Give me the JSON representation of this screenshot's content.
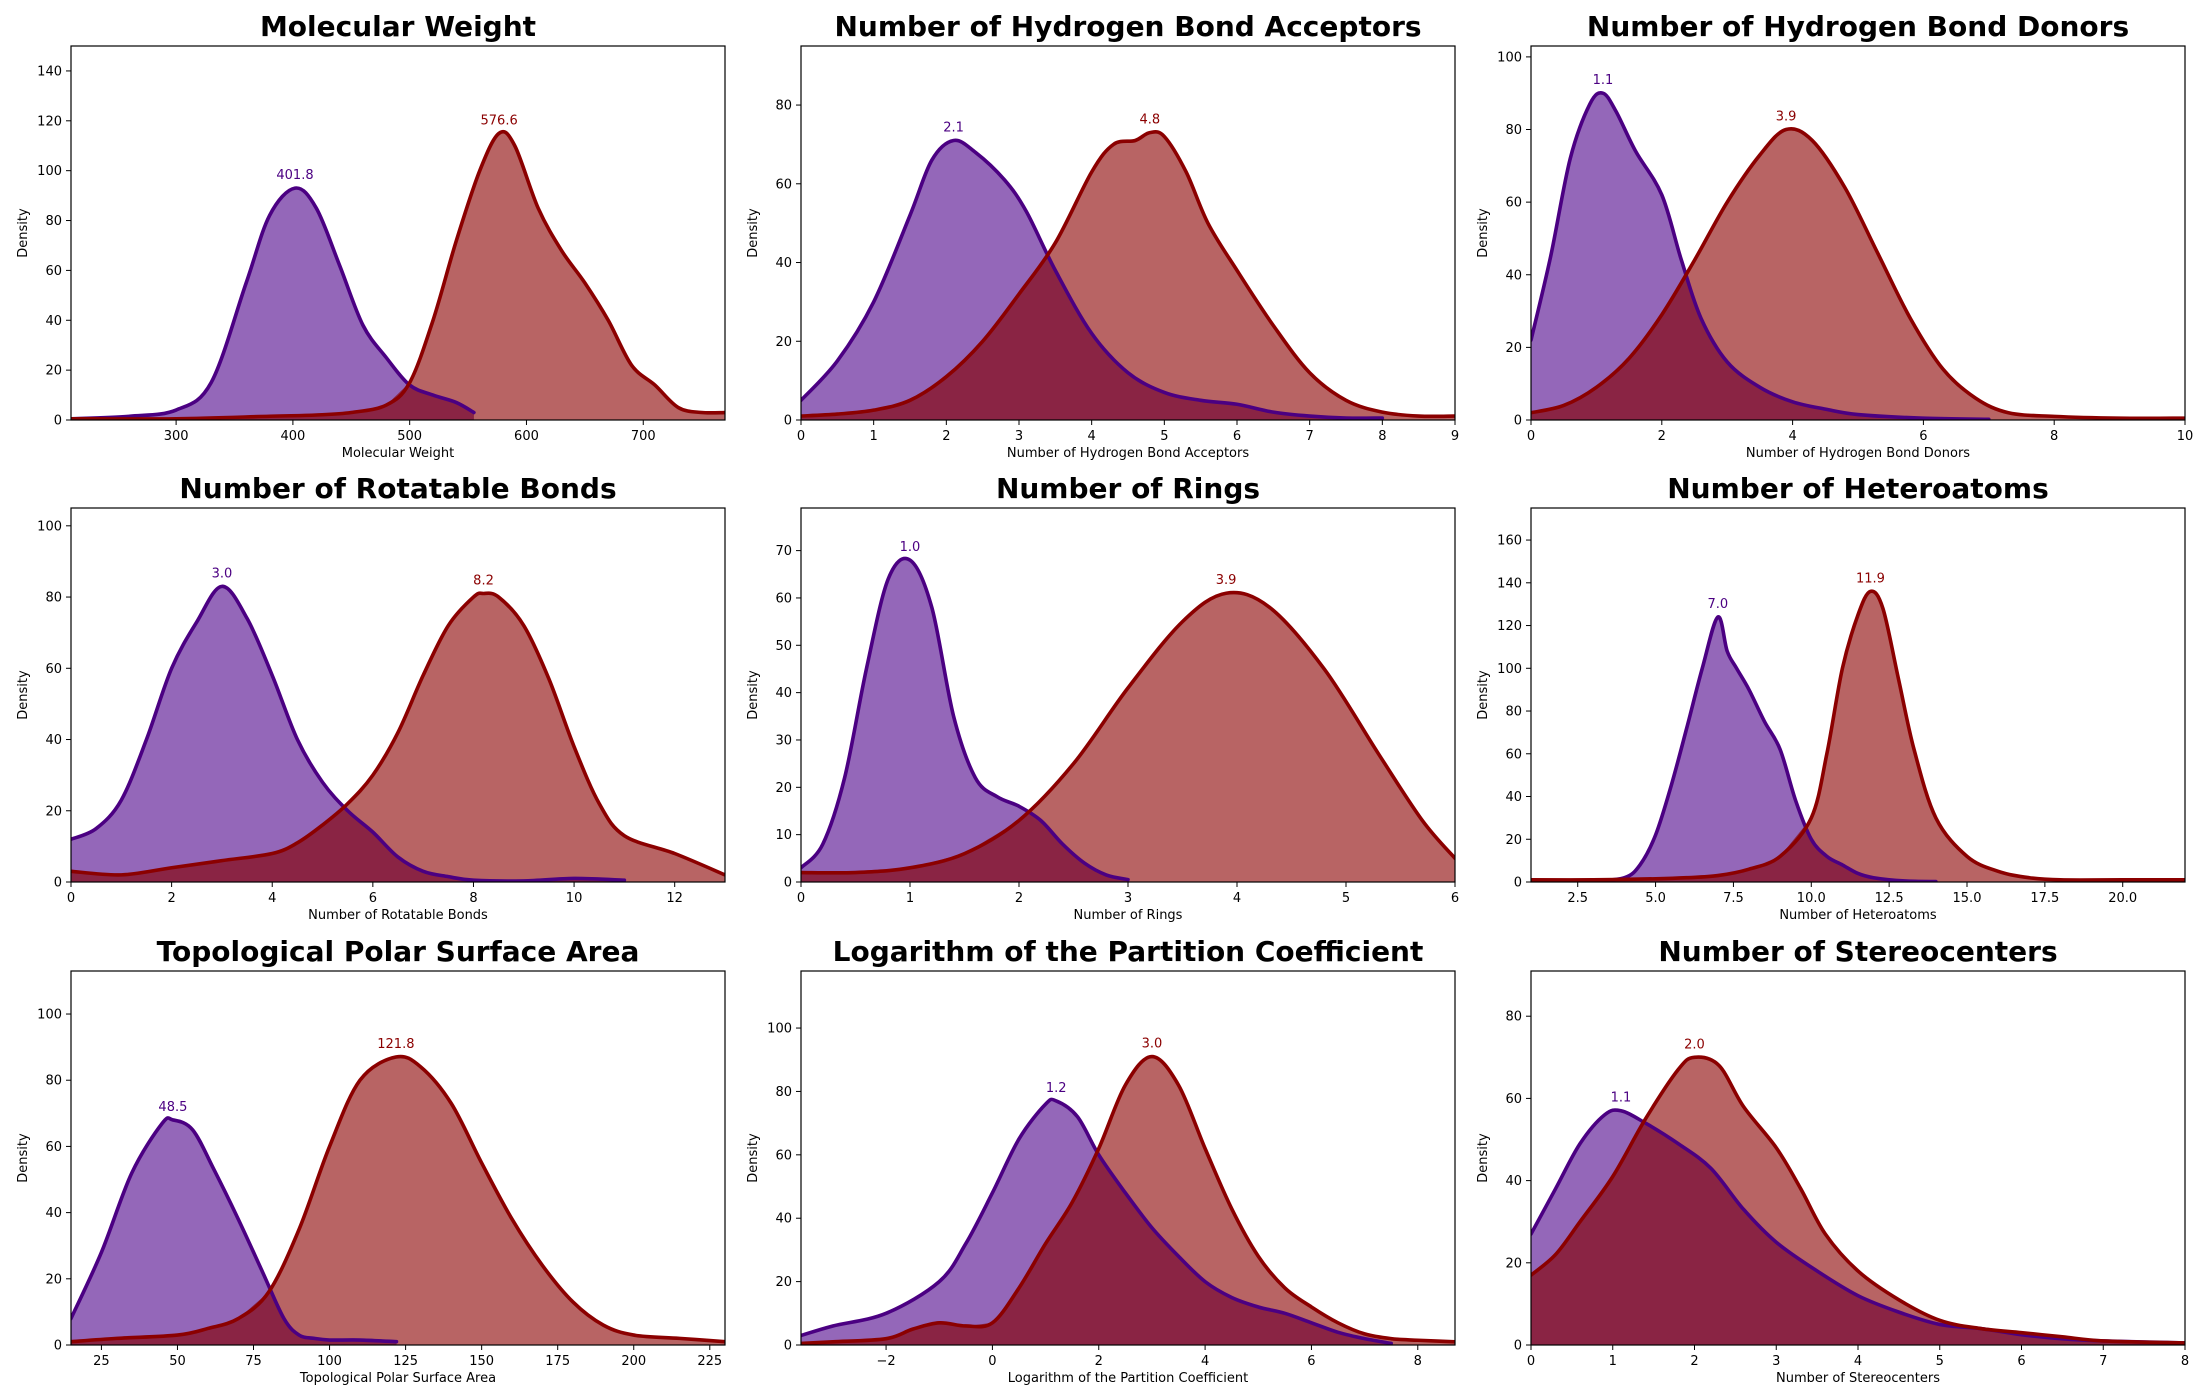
{
  "colors": {
    "series_a": "#4b0082",
    "series_a_fill": "#9467b9",
    "series_b": "#8b0000",
    "series_b_fill": "#b86464",
    "overlap_fill": "#8a2444"
  },
  "chart_data": [
    {
      "type": "area",
      "title": "Molecular Weight",
      "xlabel": "Molecular Weight",
      "ylabel": "Density",
      "xlim": [
        210,
        770
      ],
      "ylim": [
        0,
        150
      ],
      "xticks": [
        300,
        400,
        500,
        600,
        700
      ],
      "xtick_labels": [
        "300",
        "400",
        "500",
        "600",
        "700"
      ],
      "yticks": [
        0,
        20,
        40,
        60,
        80,
        100,
        120,
        140
      ],
      "grid": false,
      "series": [
        {
          "peak_x": 401.8,
          "peak_label": "401.8",
          "x": [
            210,
            260,
            300,
            330,
            360,
            380,
            401.8,
            420,
            440,
            460,
            480,
            500,
            520,
            540,
            555
          ],
          "y": [
            0.5,
            1.5,
            4,
            15,
            55,
            82,
            93,
            85,
            62,
            38,
            25,
            14,
            10,
            7,
            3
          ]
        },
        {
          "peak_x": 576.6,
          "peak_label": "576.6",
          "x": [
            210,
            300,
            380,
            420,
            450,
            480,
            500,
            520,
            540,
            560,
            576.6,
            590,
            610,
            630,
            650,
            670,
            690,
            710,
            730,
            750,
            770
          ],
          "y": [
            0.5,
            0.5,
            1.5,
            2,
            3,
            6,
            15,
            40,
            72,
            100,
            115,
            110,
            85,
            68,
            55,
            40,
            22,
            14,
            5,
            3,
            3
          ]
        }
      ]
    },
    {
      "type": "area",
      "title": "Number of Hydrogen Bond Acceptors",
      "xlabel": "Number of Hydrogen Bond Acceptors",
      "ylabel": "Density",
      "xlim": [
        0,
        9
      ],
      "ylim": [
        0,
        95
      ],
      "xticks": [
        0,
        1,
        2,
        3,
        4,
        5,
        6,
        7,
        8,
        9
      ],
      "xtick_labels": [
        "0",
        "1",
        "2",
        "3",
        "4",
        "5",
        "6",
        "7",
        "8",
        "9"
      ],
      "yticks": [
        0,
        20,
        40,
        60,
        80
      ],
      "grid": false,
      "series": [
        {
          "peak_x": 2.1,
          "peak_label": "2.1",
          "x": [
            0,
            0.5,
            1,
            1.5,
            1.8,
            2.1,
            2.4,
            2.8,
            3.1,
            3.5,
            4,
            4.5,
            5,
            5.5,
            6,
            6.5,
            7,
            7.5,
            8
          ],
          "y": [
            5,
            15,
            30,
            52,
            66,
            71,
            68,
            61,
            53,
            38,
            22,
            12,
            7,
            5,
            4,
            2,
            1,
            0.5,
            0.5
          ]
        },
        {
          "peak_x": 4.8,
          "peak_label": "4.8",
          "x": [
            0,
            0.5,
            1,
            1.5,
            2,
            2.5,
            3,
            3.5,
            4,
            4.3,
            4.6,
            4.8,
            5,
            5.3,
            5.6,
            6,
            6.5,
            7,
            7.5,
            8,
            8.5,
            9
          ],
          "y": [
            1,
            1.5,
            2.5,
            5,
            11,
            20,
            32,
            45,
            63,
            70,
            71,
            73,
            72,
            63,
            50,
            38,
            24,
            12,
            5,
            2,
            1,
            1
          ]
        }
      ]
    },
    {
      "type": "area",
      "title": "Number of Hydrogen Bond Donors",
      "xlabel": "Number of Hydrogen Bond Donors",
      "ylabel": "Density",
      "xlim": [
        0,
        10
      ],
      "ylim": [
        0,
        103
      ],
      "xticks": [
        0,
        2,
        4,
        6,
        8,
        10
      ],
      "xtick_labels": [
        "0",
        "2",
        "4",
        "6",
        "8",
        "10"
      ],
      "yticks": [
        0,
        20,
        40,
        60,
        80,
        100
      ],
      "grid": false,
      "series": [
        {
          "peak_x": 1.1,
          "peak_label": "1.1",
          "x": [
            0,
            0.3,
            0.6,
            0.9,
            1.1,
            1.3,
            1.6,
            2,
            2.3,
            2.6,
            3,
            3.5,
            4,
            4.5,
            5,
            6,
            7
          ],
          "y": [
            22,
            45,
            72,
            87,
            90,
            85,
            74,
            62,
            44,
            28,
            16,
            9,
            5,
            3,
            1.5,
            0.5,
            0.2
          ]
        },
        {
          "peak_x": 3.9,
          "peak_label": "3.9",
          "x": [
            0,
            0.5,
            1,
            1.5,
            2,
            2.5,
            3,
            3.5,
            3.9,
            4.3,
            4.8,
            5.3,
            5.8,
            6.3,
            6.8,
            7.3,
            8,
            9,
            10
          ],
          "y": [
            2,
            4,
            9,
            17,
            29,
            44,
            60,
            73,
            80,
            77,
            64,
            46,
            28,
            14,
            6,
            2,
            1,
            0.5,
            0.5
          ]
        }
      ]
    },
    {
      "type": "area",
      "title": "Number of Rotatable Bonds",
      "xlabel": "Number of Rotatable Bonds",
      "ylabel": "Density",
      "xlim": [
        0,
        13
      ],
      "ylim": [
        0,
        105
      ],
      "xticks": [
        0,
        2,
        4,
        6,
        8,
        10,
        12
      ],
      "xtick_labels": [
        "0",
        "2",
        "4",
        "6",
        "8",
        "10",
        "12"
      ],
      "yticks": [
        0,
        20,
        40,
        60,
        80,
        100
      ],
      "grid": false,
      "series": [
        {
          "peak_x": 3.0,
          "peak_label": "3.0",
          "x": [
            0,
            0.5,
            1,
            1.5,
            2,
            2.5,
            3,
            3.5,
            4,
            4.5,
            5,
            5.5,
            6,
            6.5,
            7,
            7.5,
            8,
            9,
            10,
            11
          ],
          "y": [
            12,
            15,
            23,
            40,
            60,
            73,
            83,
            74,
            58,
            40,
            28,
            20,
            14,
            7,
            3,
            1.5,
            0.5,
            0.3,
            1,
            0.5
          ]
        },
        {
          "peak_x": 8.2,
          "peak_label": "8.2",
          "x": [
            0,
            1,
            2,
            3,
            4,
            4.5,
            5,
            5.5,
            6,
            6.5,
            7,
            7.5,
            8,
            8.2,
            8.5,
            9,
            9.5,
            10,
            10.5,
            11,
            12,
            13
          ],
          "y": [
            3,
            2,
            4,
            6,
            8,
            11,
            16,
            22,
            30,
            42,
            58,
            72,
            80,
            81,
            80,
            72,
            57,
            38,
            22,
            13,
            8,
            2
          ]
        }
      ]
    },
    {
      "type": "area",
      "title": "Number of Rings",
      "xlabel": "Number of Rings",
      "ylabel": "Density",
      "xlim": [
        0,
        6
      ],
      "ylim": [
        0,
        79
      ],
      "xticks": [
        0,
        1,
        2,
        3,
        4,
        5,
        6
      ],
      "xtick_labels": [
        "0",
        "1",
        "2",
        "3",
        "4",
        "5",
        "6"
      ],
      "yticks": [
        0,
        10,
        20,
        30,
        40,
        50,
        60,
        70
      ],
      "grid": false,
      "series": [
        {
          "peak_x": 1.0,
          "peak_label": "1.0",
          "x": [
            0,
            0.2,
            0.4,
            0.6,
            0.8,
            1,
            1.2,
            1.4,
            1.6,
            1.8,
            2,
            2.2,
            2.4,
            2.6,
            2.8,
            3
          ],
          "y": [
            3,
            8,
            22,
            45,
            64,
            68,
            58,
            35,
            22,
            18,
            16,
            13,
            8,
            4,
            1.5,
            0.5
          ]
        },
        {
          "peak_x": 3.9,
          "peak_label": "3.9",
          "x": [
            0,
            0.5,
            1,
            1.5,
            2,
            2.5,
            3,
            3.5,
            3.9,
            4.3,
            4.8,
            5.3,
            5.7,
            6
          ],
          "y": [
            2,
            2,
            3,
            6,
            13,
            25,
            41,
            55,
            61,
            58,
            45,
            27,
            13,
            5
          ]
        }
      ]
    },
    {
      "type": "area",
      "title": "Number of Heteroatoms",
      "xlabel": "Number of Heteroatoms",
      "ylabel": "Density",
      "xlim": [
        1,
        22
      ],
      "ylim": [
        0,
        175
      ],
      "xticks": [
        2.5,
        5,
        7.5,
        10,
        12.5,
        15,
        17.5,
        20
      ],
      "xtick_labels": [
        "2.5",
        "5.0",
        "7.5",
        "10.0",
        "12.5",
        "15.0",
        "17.5",
        "20.0"
      ],
      "yticks": [
        0,
        20,
        40,
        60,
        80,
        100,
        120,
        140,
        160
      ],
      "grid": false,
      "series": [
        {
          "peak_x": 7.0,
          "peak_label": "7.0",
          "x": [
            1,
            2,
            3,
            4,
            4.5,
            5,
            5.5,
            6,
            6.5,
            7,
            7.3,
            7.6,
            8,
            8.5,
            9,
            9.5,
            10,
            10.5,
            11,
            11.5,
            12,
            13,
            14
          ],
          "y": [
            0.5,
            0.5,
            0.5,
            2,
            8,
            22,
            45,
            72,
            100,
            124,
            108,
            100,
            90,
            75,
            62,
            38,
            20,
            12,
            8,
            4,
            2,
            0.5,
            0.2
          ]
        },
        {
          "peak_x": 11.9,
          "peak_label": "11.9",
          "x": [
            1,
            3,
            5,
            6,
            7,
            8,
            9,
            10,
            10.5,
            11,
            11.5,
            11.9,
            12.3,
            12.8,
            13.3,
            14,
            15,
            16,
            17,
            18,
            20,
            22
          ],
          "y": [
            1,
            1,
            1.5,
            2,
            3,
            6,
            12,
            30,
            60,
            100,
            125,
            136,
            128,
            95,
            62,
            30,
            12,
            5,
            2,
            1,
            1,
            1
          ]
        }
      ]
    },
    {
      "type": "area",
      "title": "Topological Polar Surface Area",
      "xlabel": "Topological Polar Surface Area",
      "ylabel": "Density",
      "xlim": [
        15,
        230
      ],
      "ylim": [
        0,
        113
      ],
      "xticks": [
        25,
        50,
        75,
        100,
        125,
        150,
        175,
        200,
        225
      ],
      "xtick_labels": [
        "25",
        "50",
        "75",
        "100",
        "125",
        "150",
        "175",
        "200",
        "225"
      ],
      "yticks": [
        0,
        20,
        40,
        60,
        80,
        100
      ],
      "grid": false,
      "series": [
        {
          "peak_x": 48.5,
          "peak_label": "48.5",
          "x": [
            15,
            25,
            35,
            45,
            48.5,
            55,
            62,
            70,
            78,
            85,
            90,
            95,
            100,
            110,
            122
          ],
          "y": [
            8,
            28,
            52,
            67,
            68,
            65,
            53,
            38,
            22,
            8,
            3,
            2,
            1.5,
            1.5,
            1
          ]
        },
        {
          "peak_x": 121.8,
          "peak_label": "121.8",
          "x": [
            15,
            30,
            50,
            60,
            70,
            80,
            90,
            100,
            110,
            121.8,
            130,
            140,
            150,
            160,
            170,
            180,
            190,
            200,
            215,
            230
          ],
          "y": [
            1,
            2,
            3,
            5,
            8,
            16,
            35,
            60,
            80,
            87,
            84,
            73,
            55,
            38,
            24,
            13,
            6,
            3,
            2,
            1
          ]
        }
      ]
    },
    {
      "type": "area",
      "title": "Logarithm of the Partition Coefficient",
      "xlabel": "Logarithm of the Partition Coefficient",
      "ylabel": "Density",
      "xlim": [
        -3.6,
        8.7
      ],
      "ylim": [
        0,
        118
      ],
      "xticks": [
        -2,
        0,
        2,
        4,
        6,
        8
      ],
      "xtick_labels": [
        "−2",
        "0",
        "2",
        "4",
        "6",
        "8"
      ],
      "yticks": [
        0,
        20,
        40,
        60,
        80,
        100
      ],
      "grid": false,
      "series": [
        {
          "peak_x": 1.2,
          "peak_label": "1.2",
          "x": [
            -3.6,
            -3,
            -2,
            -1,
            -0.5,
            0,
            0.5,
            1,
            1.2,
            1.6,
            2,
            2.5,
            3,
            3.5,
            4,
            4.5,
            5,
            5.5,
            6,
            6.5,
            7,
            7.5
          ],
          "y": [
            3,
            6,
            10,
            20,
            32,
            48,
            65,
            76,
            77,
            72,
            60,
            48,
            37,
            28,
            20,
            15,
            12,
            10,
            7,
            4,
            2,
            0.5
          ]
        },
        {
          "peak_x": 3.0,
          "peak_label": "3.0",
          "x": [
            -3.6,
            -3,
            -2,
            -1.5,
            -1,
            -0.5,
            0,
            0.5,
            1,
            1.5,
            2,
            2.5,
            3,
            3.5,
            4,
            4.5,
            5,
            5.5,
            6,
            6.5,
            7,
            7.5,
            8,
            8.7
          ],
          "y": [
            0.5,
            1,
            2,
            5,
            7,
            6,
            7,
            18,
            32,
            45,
            62,
            82,
            91,
            82,
            62,
            43,
            28,
            18,
            12,
            7,
            3.5,
            2,
            1.5,
            1
          ]
        }
      ]
    },
    {
      "type": "area",
      "title": "Number of Stereocenters",
      "xlabel": "Number of Stereocenters",
      "ylabel": "Density",
      "xlim": [
        0,
        8
      ],
      "ylim": [
        0,
        91
      ],
      "xticks": [
        0,
        1,
        2,
        3,
        4,
        5,
        6,
        7,
        8
      ],
      "xtick_labels": [
        "0",
        "1",
        "2",
        "3",
        "4",
        "5",
        "6",
        "7",
        "8"
      ],
      "yticks": [
        0,
        20,
        40,
        60,
        80
      ],
      "grid": false,
      "series": [
        {
          "peak_x": 1.1,
          "peak_label": "1.1",
          "x": [
            0,
            0.3,
            0.6,
            0.9,
            1.1,
            1.4,
            1.8,
            2.2,
            2.6,
            3,
            3.5,
            4,
            4.5,
            5,
            5.5,
            6,
            6.5,
            7,
            8
          ],
          "y": [
            27,
            38,
            49,
            56,
            57,
            54,
            49,
            43,
            33,
            25,
            18,
            12,
            8,
            5,
            4,
            2.5,
            1.5,
            1,
            0.5
          ]
        },
        {
          "peak_x": 2.0,
          "peak_label": "2.0",
          "x": [
            0,
            0.3,
            0.6,
            1,
            1.4,
            1.8,
            2,
            2.3,
            2.6,
            3,
            3.3,
            3.6,
            4,
            4.5,
            5,
            5.5,
            6,
            6.5,
            7,
            8
          ],
          "y": [
            17,
            22,
            30,
            41,
            55,
            67,
            70,
            68,
            58,
            48,
            38,
            27,
            18,
            11,
            6,
            4,
            3,
            2,
            1,
            0.5
          ]
        }
      ]
    }
  ]
}
